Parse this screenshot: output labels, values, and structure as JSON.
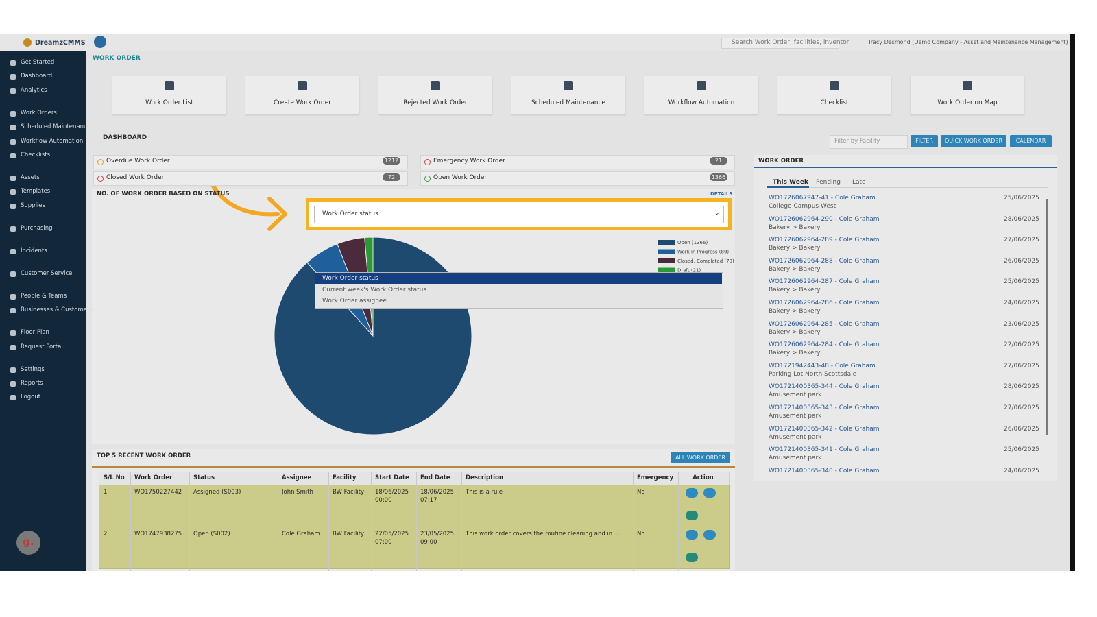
{
  "header": {
    "logo": "DreamzCMMS",
    "search": "Search Work Order, facilities, inventor",
    "user": "Tracy Desmond (Demo Company - Asset and Maintenance Management)"
  },
  "sidebar": [
    [
      "Get Started",
      "Dashboard",
      "Analytics"
    ],
    [
      "Work Orders",
      "Scheduled Maintenance",
      "Workflow Automation",
      "Checklists"
    ],
    [
      "Assets",
      "Templates",
      "Supplies"
    ],
    [
      "Purchasing"
    ],
    [
      "Incidents"
    ],
    [
      "Customer Service"
    ],
    [
      "People & Teams",
      "Businesses & Customers"
    ],
    [
      "Floor Plan",
      "Request Portal"
    ],
    [
      "Settings",
      "Reports",
      "Logout"
    ]
  ],
  "widget": "g.",
  "page_title": "WORK ORDER",
  "tiles": [
    "Work Order List",
    "Create Work Order",
    "Rejected Work Order",
    "Scheduled Maintenance",
    "Workflow Automation",
    "Checklist",
    "Work Order on Map"
  ],
  "dashboard": {
    "title": "DASHBOARD",
    "filter": "Filter by Facility",
    "buttons": [
      "FILTER",
      "QUICK WORK ORDER",
      "CALENDAR"
    ]
  },
  "stats": [
    {
      "label": "Overdue Work Order",
      "count": 1212
    },
    {
      "label": "Closed Work Order",
      "count": 72
    },
    {
      "label": "Emergency Work Order",
      "count": 21
    },
    {
      "label": "Open Work Order",
      "count": 1366
    }
  ],
  "status_panel": {
    "title": "NO. OF WORK ORDER BASED ON STATUS",
    "details": "DETAILS",
    "select": "Work Order status",
    "options": [
      "Work Order status",
      "Current week's Work Order status",
      "Work Order assignee"
    ]
  },
  "chart_data": {
    "type": "pie",
    "categories": [
      "Open (1366)",
      "Work In Progress (89)",
      "Closed, Completed (70)",
      "Draft (21)"
    ],
    "values": [
      1366,
      89,
      70,
      21
    ],
    "colors": [
      "#1e4a70",
      "#1f5f9c",
      "#4b2a3c",
      "#2a9a34"
    ]
  },
  "recent": {
    "title": "TOP 5 RECENT WORK ORDER",
    "button": "ALL WORK ORDER",
    "columns": [
      "S/L No",
      "Work Order",
      "Status",
      "Assignee",
      "Facility",
      "Start Date",
      "End Date",
      "Description",
      "Emergency",
      "Action"
    ],
    "rows": [
      [
        1,
        "WO1750227442",
        "Assigned (S003)",
        "John Smith",
        "BW Facility",
        "18/06/2025 00:00",
        "18/06/2025 07:17",
        "This is a rule",
        "No"
      ],
      [
        2,
        "WO1747938275",
        "Open (S002)",
        "Cole Graham",
        "BW Facility",
        "22/05/2025 07:00",
        "23/05/2025 09:00",
        "This work order covers the routine cleaning and in ...",
        "No"
      ]
    ]
  },
  "side_list": {
    "title": "WORK ORDER",
    "tabs": [
      "This Week",
      "Pending",
      "Late"
    ],
    "items": [
      {
        "title": "WO1726067947-41 - Cole Graham",
        "subtitle": "College Campus West",
        "date": "25/06/2025"
      },
      {
        "title": "WO1726062964-290 - Cole Graham",
        "subtitle": "Bakery > Bakery",
        "date": "28/06/2025"
      },
      {
        "title": "WO1726062964-289 - Cole Graham",
        "subtitle": "Bakery > Bakery",
        "date": "27/06/2025"
      },
      {
        "title": "WO1726062964-288 - Cole Graham",
        "subtitle": "Bakery > Bakery",
        "date": "26/06/2025"
      },
      {
        "title": "WO1726062964-287 - Cole Graham",
        "subtitle": "Bakery > Bakery",
        "date": "25/06/2025"
      },
      {
        "title": "WO1726062964-286 - Cole Graham",
        "subtitle": "Bakery > Bakery",
        "date": "24/06/2025"
      },
      {
        "title": "WO1726062964-285 - Cole Graham",
        "subtitle": "Bakery > Bakery",
        "date": "23/06/2025"
      },
      {
        "title": "WO1726062964-284 - Cole Graham",
        "subtitle": "Bakery > Bakery",
        "date": "22/06/2025"
      },
      {
        "title": "WO1721942443-48 - Cole Graham",
        "subtitle": "Parking Lot North Scottsdale",
        "date": "27/06/2025"
      },
      {
        "title": "WO1721400365-344 - Cole Graham",
        "subtitle": "Amusement park",
        "date": "28/06/2025"
      },
      {
        "title": "WO1721400365-343 - Cole Graham",
        "subtitle": "Amusement park",
        "date": "27/06/2025"
      },
      {
        "title": "WO1721400365-342 - Cole Graham",
        "subtitle": "Amusement park",
        "date": "26/06/2025"
      },
      {
        "title": "WO1721400365-341 - Cole Graham",
        "subtitle": "Amusement park",
        "date": "25/06/2025"
      },
      {
        "title": "WO1721400365-340 - Cole Graham",
        "date": "24/06/2025"
      }
    ]
  }
}
